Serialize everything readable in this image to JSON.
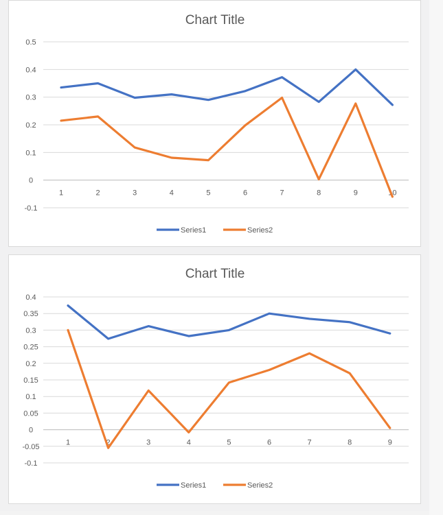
{
  "chart_data": [
    {
      "type": "line",
      "title": "Chart Title",
      "x": [
        1,
        2,
        3,
        4,
        5,
        6,
        7,
        8,
        9,
        10
      ],
      "yticks": [
        "0.5",
        "0.4",
        "0.3",
        "0.2",
        "0.1",
        "0",
        "-0.1"
      ],
      "ylim": [
        -0.1,
        0.5
      ],
      "grid": true,
      "legend": "bottom",
      "series": [
        {
          "name": "Series1",
          "color": "#4472c4",
          "values": [
            0.335,
            0.35,
            0.298,
            0.31,
            0.29,
            0.322,
            0.372,
            0.283,
            0.4,
            0.272
          ]
        },
        {
          "name": "Series2",
          "color": "#ed7d31",
          "values": [
            0.215,
            0.23,
            0.118,
            0.081,
            0.072,
            0.198,
            0.298,
            0.003,
            0.277,
            -0.06
          ]
        }
      ]
    },
    {
      "type": "line",
      "title": "Chart Title",
      "x": [
        1,
        2,
        3,
        4,
        5,
        6,
        7,
        8,
        9
      ],
      "yticks": [
        "0.4",
        "0.35",
        "0.3",
        "0.25",
        "0.2",
        "0.15",
        "0.1",
        "0.05",
        "0",
        "-0.05",
        "-0.1"
      ],
      "ylim": [
        -0.1,
        0.4
      ],
      "grid": true,
      "legend": "bottom",
      "series": [
        {
          "name": "Series1",
          "color": "#4472c4",
          "values": [
            0.374,
            0.274,
            0.312,
            0.282,
            0.3,
            0.35,
            0.334,
            0.324,
            0.29
          ]
        },
        {
          "name": "Series2",
          "color": "#ed7d31",
          "values": [
            0.3,
            -0.055,
            0.118,
            -0.008,
            0.142,
            0.18,
            0.23,
            0.17,
            0.005
          ]
        }
      ]
    }
  ]
}
